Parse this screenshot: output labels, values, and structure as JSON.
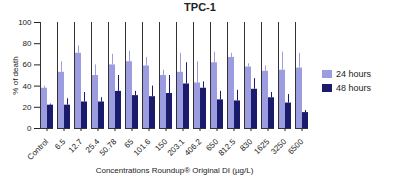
{
  "chart_data": {
    "type": "bar",
    "title": "TPC-1",
    "x_label": "Concentrations Roundup® Original DI (µg/L)",
    "y_label": "% of death",
    "categories": [
      "Control",
      "6.5",
      "12.7",
      "25.4",
      "50.78",
      "65",
      "101.6",
      "150",
      "203.1",
      "406.2",
      "650",
      "812.5",
      "830",
      "1625",
      "3250",
      "6500"
    ],
    "series": [
      {
        "name": "24 hours",
        "color": "#9c9ce0",
        "values": [
          38,
          53,
          71,
          50,
          60,
          63,
          59,
          50,
          53,
          43,
          62,
          67,
          58,
          54,
          55,
          57
        ],
        "errors": [
          2,
          10,
          7,
          10,
          10,
          10,
          8,
          5,
          18,
          20,
          10,
          4,
          3,
          5,
          17,
          14
        ]
      },
      {
        "name": "48 hours",
        "color": "#1b1b6b",
        "values": [
          22,
          22,
          25,
          25,
          35,
          31,
          30,
          33,
          42,
          38,
          27,
          26,
          37,
          29,
          24,
          15
        ],
        "errors": [
          1,
          6,
          9,
          4,
          15,
          4,
          10,
          17,
          20,
          6,
          8,
          10,
          10,
          5,
          8,
          2
        ]
      }
    ],
    "ylim": [
      0,
      100
    ],
    "yticks": [
      0,
      20,
      40,
      60,
      80,
      100
    ],
    "grid": false,
    "legend": "right"
  }
}
